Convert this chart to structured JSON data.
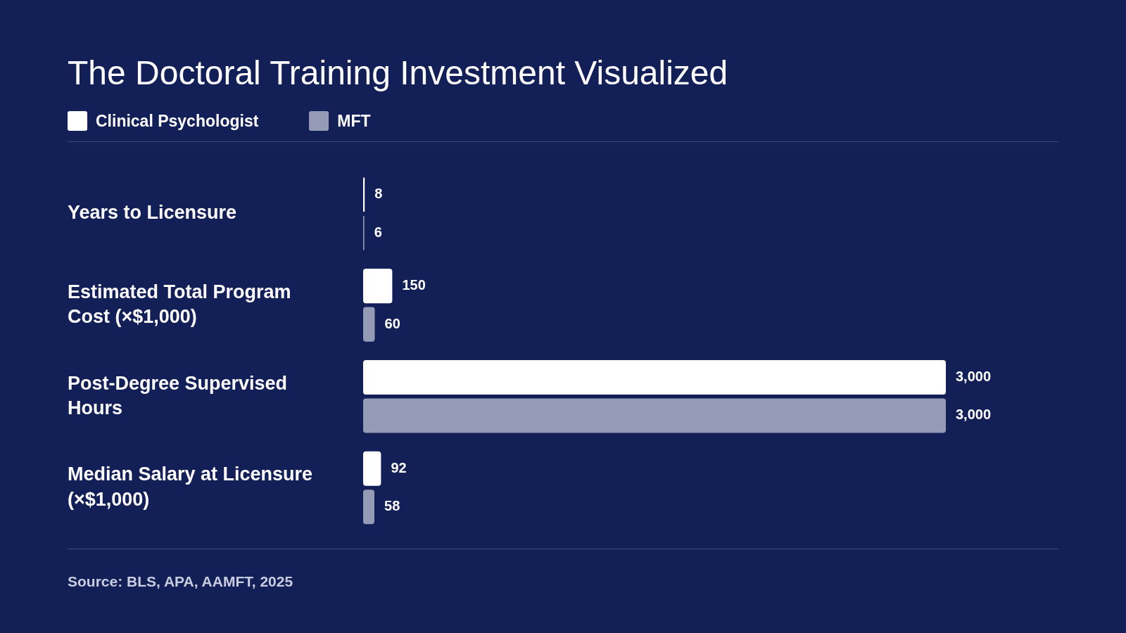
{
  "chart_data": {
    "type": "bar",
    "orientation": "horizontal",
    "title": "The Doctoral Training Investment Visualized",
    "categories": [
      "Years to Licensure",
      "Estimated Total Program Cost (×$1,000)",
      "Post-Degree Supervised Hours",
      "Median Salary at Licensure (×$1,000)"
    ],
    "series": [
      {
        "name": "Clinical Psychologist",
        "color": "#ffffff",
        "values": [
          8,
          150,
          3000,
          92
        ],
        "value_labels": [
          "8",
          "150",
          "3,000",
          "92"
        ]
      },
      {
        "name": "MFT",
        "color": "#959bb5",
        "values": [
          6,
          60,
          3000,
          58
        ],
        "value_labels": [
          "6",
          "60",
          "3,000",
          "58"
        ]
      }
    ],
    "legend": "top left",
    "annotations": [
      "Source: BLS, APA, AAMFT, 2025"
    ]
  }
}
